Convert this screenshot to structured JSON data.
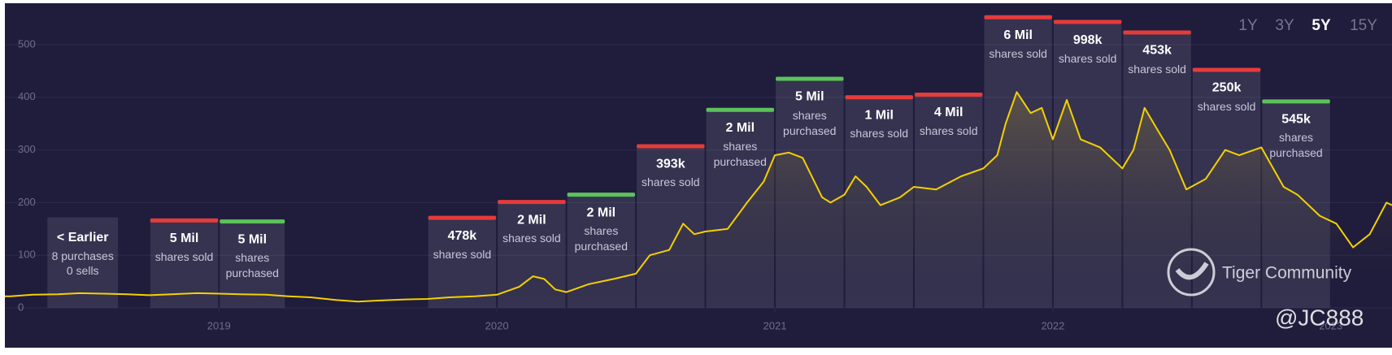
{
  "chart_data": {
    "type": "line",
    "color": "#f5d000",
    "x": [
      2018.23,
      2018.25,
      2018.33,
      2018.42,
      2018.5,
      2018.58,
      2018.67,
      2018.75,
      2018.83,
      2018.92,
      2019.0,
      2019.08,
      2019.17,
      2019.25,
      2019.33,
      2019.42,
      2019.5,
      2019.58,
      2019.67,
      2019.75,
      2019.83,
      2019.92,
      2020.0,
      2020.08,
      2020.13,
      2020.17,
      2020.21,
      2020.25,
      2020.33,
      2020.42,
      2020.5,
      2020.55,
      2020.62,
      2020.67,
      2020.71,
      2020.75,
      2020.83,
      2020.9,
      2020.96,
      2021.0,
      2021.05,
      2021.1,
      2021.17,
      2021.2,
      2021.25,
      2021.29,
      2021.33,
      2021.38,
      2021.45,
      2021.5,
      2021.58,
      2021.67,
      2021.75,
      2021.8,
      2021.83,
      2021.87,
      2021.92,
      2021.96,
      2022.0,
      2022.05,
      2022.1,
      2022.17,
      2022.25,
      2022.29,
      2022.33,
      2022.38,
      2022.42,
      2022.48,
      2022.55,
      2022.62,
      2022.67,
      2022.75,
      2022.83,
      2022.88,
      2022.96,
      2023.02,
      2023.08,
      2023.14,
      2023.2,
      2023.22
    ],
    "values": [
      22,
      22,
      25,
      26,
      28,
      27,
      26,
      24,
      26,
      28,
      27,
      26,
      25,
      22,
      20,
      15,
      12,
      14,
      16,
      17,
      20,
      22,
      25,
      40,
      60,
      55,
      35,
      30,
      45,
      55,
      65,
      100,
      110,
      160,
      140,
      145,
      150,
      200,
      240,
      290,
      295,
      285,
      210,
      200,
      215,
      250,
      230,
      195,
      210,
      230,
      225,
      250,
      265,
      290,
      350,
      410,
      370,
      380,
      320,
      395,
      320,
      305,
      265,
      300,
      380,
      335,
      300,
      225,
      245,
      300,
      290,
      305,
      230,
      215,
      175,
      160,
      115,
      140,
      200,
      195
    ],
    "xlim": [
      2018.23,
      2023.22
    ],
    "xticks": [
      2019,
      2020,
      2021,
      2022,
      2023
    ],
    "ylim": [
      0,
      500
    ],
    "yticks": [
      0,
      100,
      200,
      300,
      400,
      500
    ],
    "grid": true,
    "insider_boxes": [
      {
        "x0": 2018.38,
        "x1": 2018.64,
        "top": 172,
        "label": "< Earlier",
        "detail": [
          "8 purchases",
          "0 sells"
        ]
      },
      {
        "x0": 2018.75,
        "x1": 2019.0,
        "top": 170,
        "label": "5 Mil",
        "detail": [
          "shares sold"
        ],
        "color": "#e53b3b"
      },
      {
        "x0": 2019.0,
        "x1": 2019.24,
        "top": 168,
        "label": "5 Mil",
        "detail": [
          "shares purchased"
        ],
        "color": "#5cc25a"
      },
      {
        "x0": 2019.75,
        "x1": 2020.0,
        "top": 175,
        "label": "478k",
        "detail": [
          "shares sold"
        ],
        "color": "#e53b3b"
      },
      {
        "x0": 2020.0,
        "x1": 2020.25,
        "top": 205,
        "label": "2 Mil",
        "detail": [
          "shares sold"
        ],
        "color": "#e53b3b"
      },
      {
        "x0": 2020.25,
        "x1": 2020.5,
        "top": 219,
        "label": "2 Mil",
        "detail": [
          "shares purchased"
        ],
        "color": "#5cc25a"
      },
      {
        "x0": 2020.5,
        "x1": 2020.75,
        "top": 311,
        "label": "393k",
        "detail": [
          "shares sold"
        ],
        "color": "#e53b3b"
      },
      {
        "x0": 2020.75,
        "x1": 2021.0,
        "top": 380,
        "label": "2 Mil",
        "detail": [
          "shares purchased"
        ],
        "color": "#5cc25a"
      },
      {
        "x0": 2021.0,
        "x1": 2021.25,
        "top": 439,
        "label": "5 Mil",
        "detail": [
          "shares purchased"
        ],
        "color": "#5cc25a"
      },
      {
        "x0": 2021.25,
        "x1": 2021.5,
        "top": 404,
        "label": "1 Mil",
        "detail": [
          "shares sold"
        ],
        "color": "#e53b3b"
      },
      {
        "x0": 2021.5,
        "x1": 2021.75,
        "top": 409,
        "label": "4 Mil",
        "detail": [
          "shares sold"
        ],
        "color": "#e53b3b"
      },
      {
        "x0": 2021.75,
        "x1": 2022.0,
        "top": 556,
        "label": "6 Mil",
        "detail": [
          "shares sold"
        ],
        "color": "#e53b3b"
      },
      {
        "x0": 2022.0,
        "x1": 2022.25,
        "top": 547,
        "label": "998k",
        "detail": [
          "shares sold"
        ],
        "color": "#e53b3b"
      },
      {
        "x0": 2022.25,
        "x1": 2022.5,
        "top": 527,
        "label": "453k",
        "detail": [
          "shares sold"
        ],
        "color": "#e53b3b"
      },
      {
        "x0": 2022.5,
        "x1": 2022.75,
        "top": 456,
        "label": "250k",
        "detail": [
          "shares sold"
        ],
        "color": "#e53b3b"
      },
      {
        "x0": 2022.75,
        "x1": 2023.0,
        "top": 396,
        "label": "545k",
        "detail": [
          "shares purchased"
        ],
        "color": "#5cc25a"
      }
    ]
  },
  "range_options": [
    "1Y",
    "3Y",
    "5Y",
    "15Y"
  ],
  "active_range": "5Y",
  "watermark": {
    "brand": "Tiger Community",
    "handle": "@JC888"
  }
}
